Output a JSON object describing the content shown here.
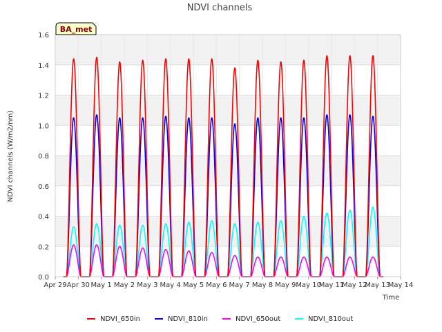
{
  "chart_data": {
    "type": "line",
    "title": "NDVI channels",
    "xlabel": "Time",
    "ylabel": "NDVI channels (W/m2/nm)",
    "badge": "BA_met",
    "x_ticks": [
      "Apr 29",
      "Apr 30",
      "May 1",
      "May 2",
      "May 3",
      "May 4",
      "May 5",
      "May 6",
      "May 7",
      "May 8",
      "May 9",
      "May 10",
      "May 11",
      "May 12",
      "May 13",
      "May 14"
    ],
    "xlim_days": [
      0,
      15
    ],
    "ylim": [
      0.0,
      1.6
    ],
    "y_ticks": [
      "0.0",
      "0.2",
      "0.4",
      "0.6",
      "0.8",
      "1.0",
      "1.2",
      "1.4",
      "1.6"
    ],
    "y_tick_values": [
      0.0,
      0.2,
      0.4,
      0.6,
      0.8,
      1.0,
      1.2,
      1.4,
      1.6
    ],
    "x_unit": "days since Apr 29 00:00",
    "daily_peak_times_days": [
      0.8,
      1.8,
      2.8,
      3.8,
      4.8,
      5.8,
      6.8,
      7.8,
      8.8,
      9.8,
      10.8,
      11.8,
      12.8,
      13.8
    ],
    "peak_width_days": 0.62,
    "data_start_days": 0.35,
    "data_end_days": 14.25,
    "series": [
      {
        "name": "NDVI_650in",
        "color": "#ff0000",
        "daily_peaks": [
          1.44,
          1.45,
          1.42,
          1.43,
          1.44,
          1.44,
          1.44,
          1.38,
          1.43,
          1.42,
          1.43,
          1.46,
          1.46,
          1.46
        ]
      },
      {
        "name": "NDVI_810in",
        "color": "#0000ff",
        "daily_peaks": [
          1.05,
          1.07,
          1.05,
          1.05,
          1.06,
          1.05,
          1.05,
          1.01,
          1.05,
          1.05,
          1.05,
          1.07,
          1.07,
          1.06
        ]
      },
      {
        "name": "NDVI_650out",
        "color": "#ff00ff",
        "daily_peaks": [
          0.21,
          0.21,
          0.2,
          0.19,
          0.18,
          0.17,
          0.16,
          0.14,
          0.13,
          0.13,
          0.13,
          0.13,
          0.13,
          0.13
        ]
      },
      {
        "name": "NDVI_810out",
        "color": "#00ffff",
        "daily_peaks": [
          0.33,
          0.35,
          0.34,
          0.34,
          0.35,
          0.36,
          0.37,
          0.35,
          0.36,
          0.37,
          0.4,
          0.42,
          0.44,
          0.46
        ]
      }
    ],
    "grid": true,
    "legend_position": "bottom"
  }
}
